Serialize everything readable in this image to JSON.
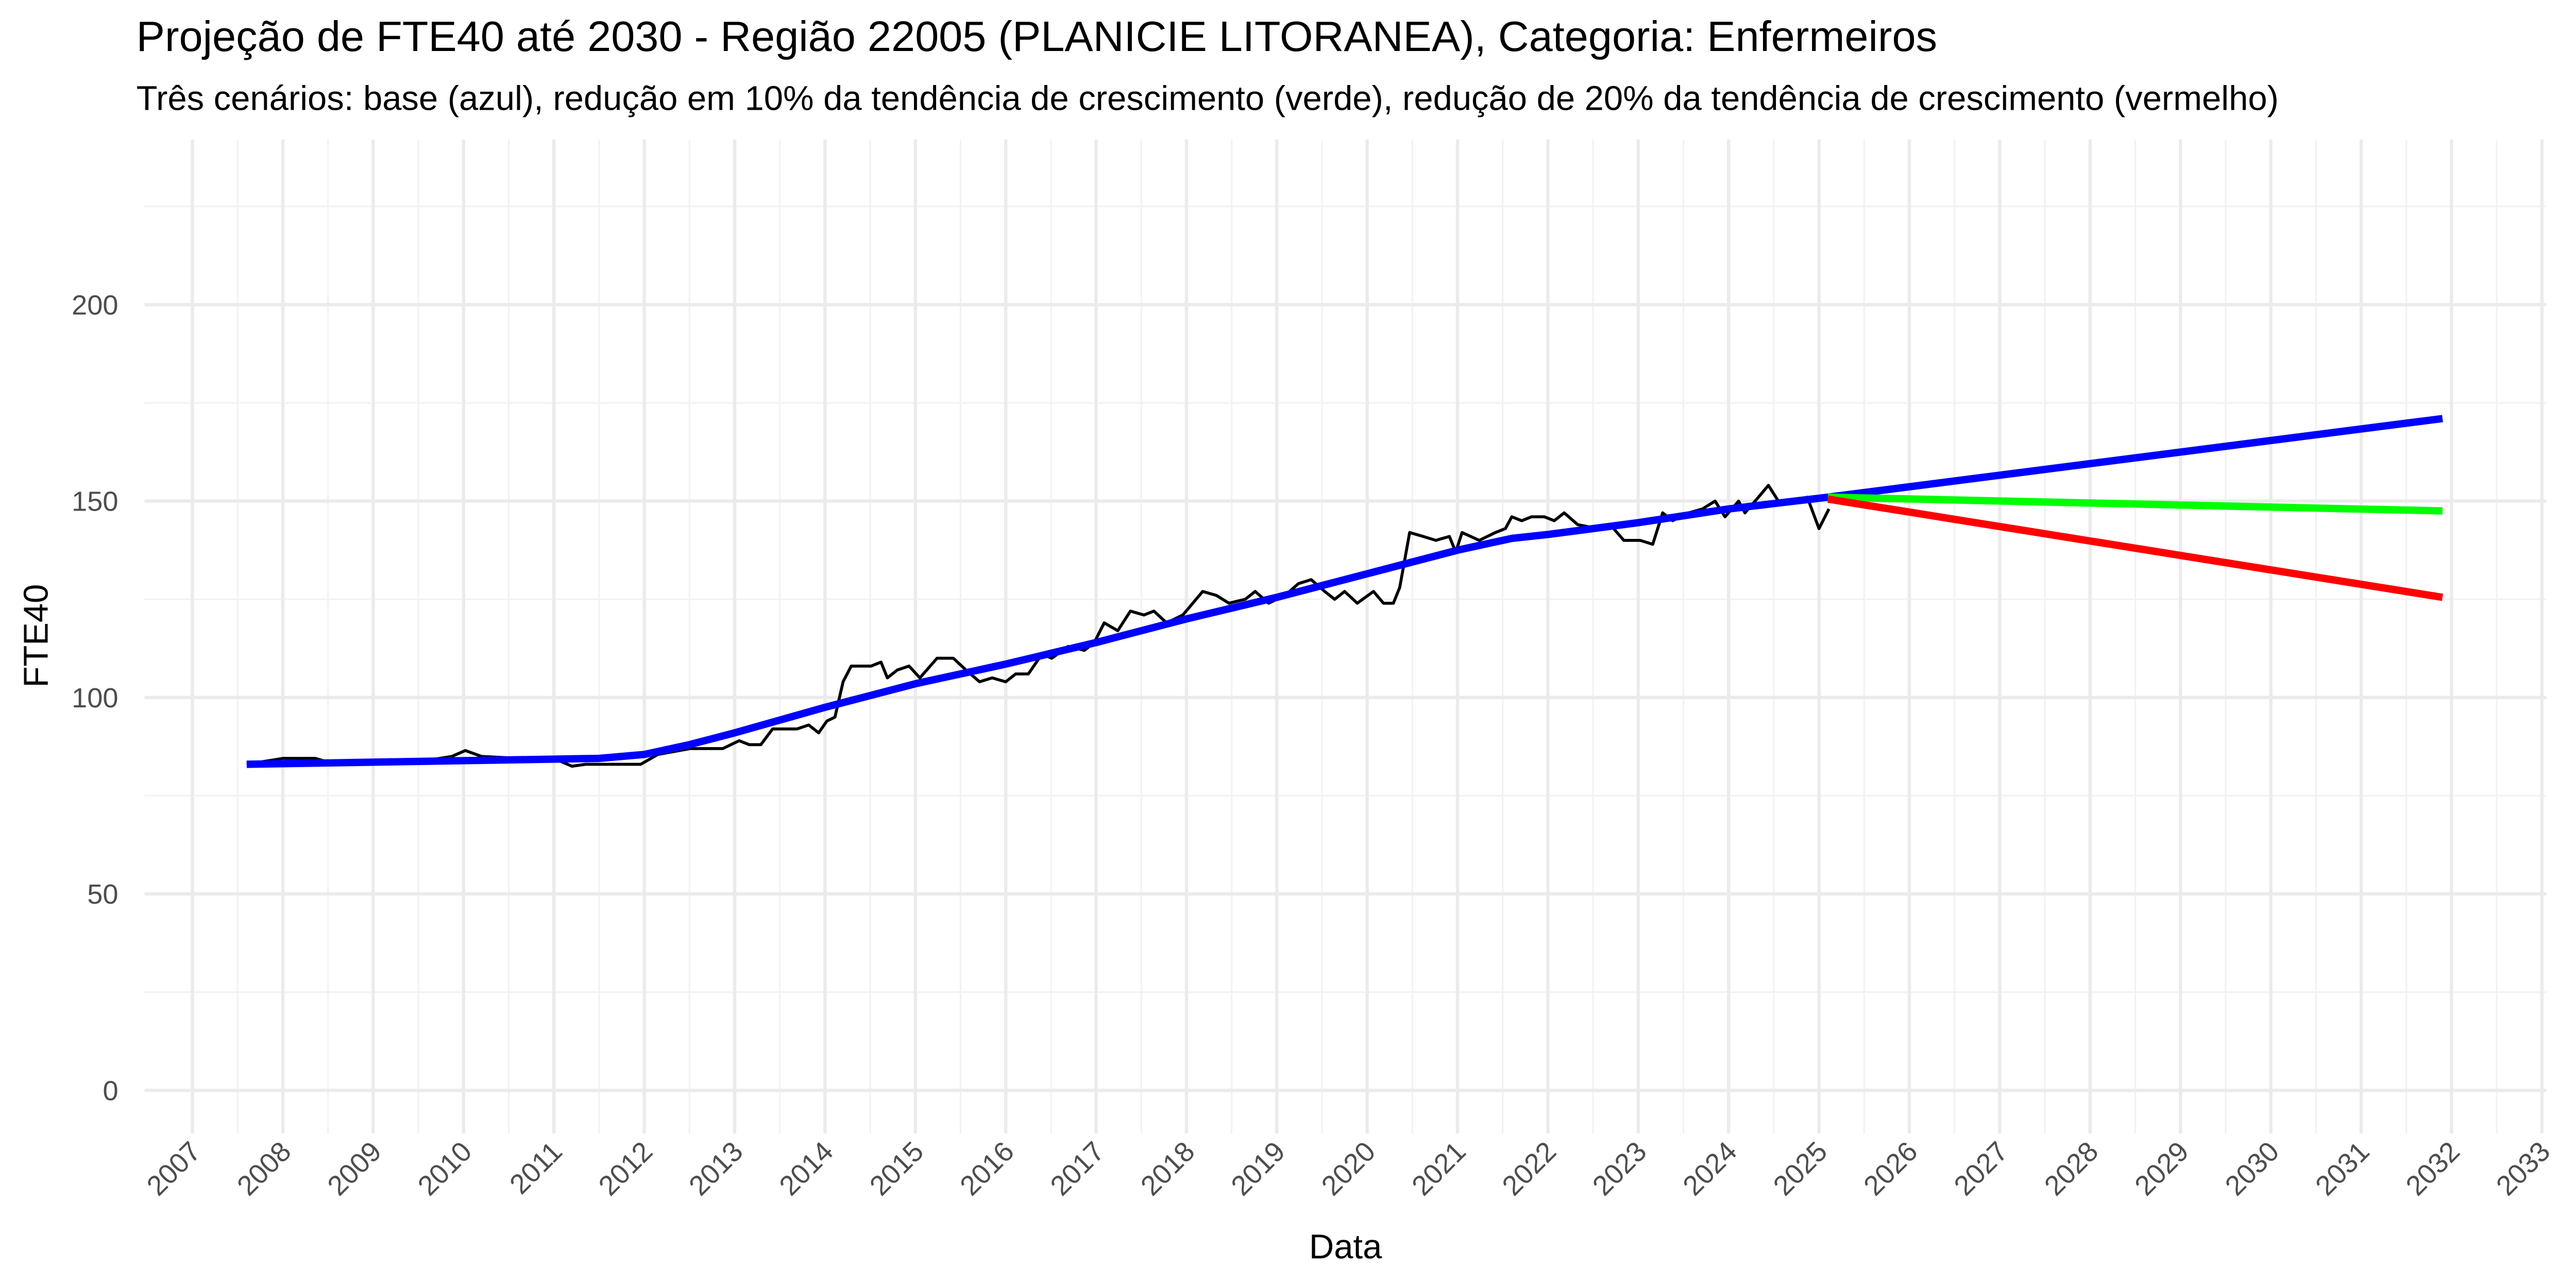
{
  "chart_data": {
    "type": "line",
    "title": "Projeção de FTE40 até 2030 - Região 22005 (PLANICIE LITORANEA), Categoria: Enfermeiros",
    "subtitle": "Três cenários: base (azul), redução em 10% da tendência de crescimento (verde), redução de 20% da tendência de crescimento (vermelho)",
    "x_label": "Data",
    "y_label": "FTE40",
    "xlim": [
      2006.47,
      2033.05
    ],
    "ylim": [
      -11,
      242
    ],
    "xticks": [
      2007,
      2008,
      2009,
      2010,
      2011,
      2012,
      2013,
      2014,
      2015,
      2016,
      2017,
      2018,
      2019,
      2020,
      2021,
      2022,
      2023,
      2024,
      2025,
      2026,
      2027,
      2028,
      2029,
      2030,
      2031,
      2032,
      2033
    ],
    "yticks": [
      0,
      50,
      100,
      150,
      200
    ],
    "grid": true,
    "series": [
      {
        "color": "#000000",
        "x": [
          2007.6,
          2008.0,
          2008.36,
          2008.51,
          2009.05,
          2009.6,
          2009.87,
          2010.02,
          2010.2,
          2011.05,
          2011.2,
          2011.35,
          2011.96,
          2012.15,
          2012.51,
          2012.87,
          2013.05,
          2013.16,
          2013.29,
          2013.42,
          2013.69,
          2013.82,
          2013.93,
          2014.02,
          2014.11,
          2014.2,
          2014.29,
          2014.51,
          2014.62,
          2014.69,
          2014.8,
          2014.93,
          2015.05,
          2015.24,
          2015.42,
          2015.56,
          2015.71,
          2015.85,
          2016.0,
          2016.11,
          2016.25,
          2016.4,
          2016.51,
          2016.69,
          2016.87,
          2016.98,
          2017.09,
          2017.24,
          2017.38,
          2017.53,
          2017.64,
          2017.78,
          2017.96,
          2018.18,
          2018.33,
          2018.47,
          2018.65,
          2018.76,
          2018.91,
          2019.09,
          2019.24,
          2019.38,
          2019.53,
          2019.64,
          2019.75,
          2019.89,
          2020.07,
          2020.18,
          2020.29,
          2020.36,
          2020.47,
          2020.62,
          2020.76,
          2020.91,
          2020.98,
          2021.05,
          2021.24,
          2021.42,
          2021.53,
          2021.6,
          2021.71,
          2021.82,
          2021.96,
          2022.07,
          2022.18,
          2022.33,
          2022.55,
          2022.69,
          2022.84,
          2023.02,
          2023.16,
          2023.27,
          2023.38,
          2023.56,
          2023.71,
          2023.85,
          2023.96,
          2024.11,
          2024.18,
          2024.33,
          2024.44,
          2024.55,
          2024.73,
          2024.87,
          2025.0,
          2025.11
        ],
        "values": [
          83,
          84.5,
          84.5,
          83.5,
          83.5,
          84,
          85,
          86.5,
          85,
          84,
          82.5,
          83,
          83,
          85.5,
          87,
          87,
          89,
          88,
          88,
          92,
          92,
          93,
          91,
          94,
          95,
          104,
          108,
          108,
          109,
          105,
          107,
          108,
          105,
          110,
          110,
          107,
          104,
          105,
          104,
          106,
          106,
          111,
          110,
          113,
          112,
          114,
          119,
          117,
          122,
          121,
          122,
          119,
          121,
          127,
          126,
          124,
          125,
          127,
          124,
          126,
          129,
          130,
          127,
          125,
          127,
          124,
          127,
          124,
          124,
          128,
          142,
          141,
          140,
          141,
          137,
          142,
          140,
          142,
          143,
          146,
          145,
          146,
          146,
          145,
          147,
          144,
          143,
          144,
          140,
          140,
          139,
          147,
          145,
          147,
          148,
          150,
          146,
          150,
          147,
          151,
          154,
          150,
          150,
          151,
          143,
          148
        ]
      },
      {
        "color": "#0000ff",
        "x": [
          2007.6,
          2011.5,
          2012,
          2012.5,
          2013,
          2014,
          2014.5,
          2015,
          2016,
          2017,
          2018,
          2019,
          2020,
          2021,
          2021.6,
          2022,
          2023,
          2024,
          2025.1,
          2031.9
        ],
        "values": [
          83,
          84.5,
          85.5,
          88,
          91,
          97.5,
          100.5,
          103.5,
          108.5,
          114,
          120,
          125.5,
          131.5,
          137.5,
          140.5,
          141.5,
          144.5,
          148,
          151,
          171
        ]
      },
      {
        "color": "#00ff00",
        "x": [
          2025.1,
          2031.9
        ],
        "values": [
          151,
          147.5
        ]
      },
      {
        "color": "#ff0000",
        "x": [
          2025.1,
          2031.9
        ],
        "values": [
          150.5,
          125.5
        ]
      }
    ]
  }
}
